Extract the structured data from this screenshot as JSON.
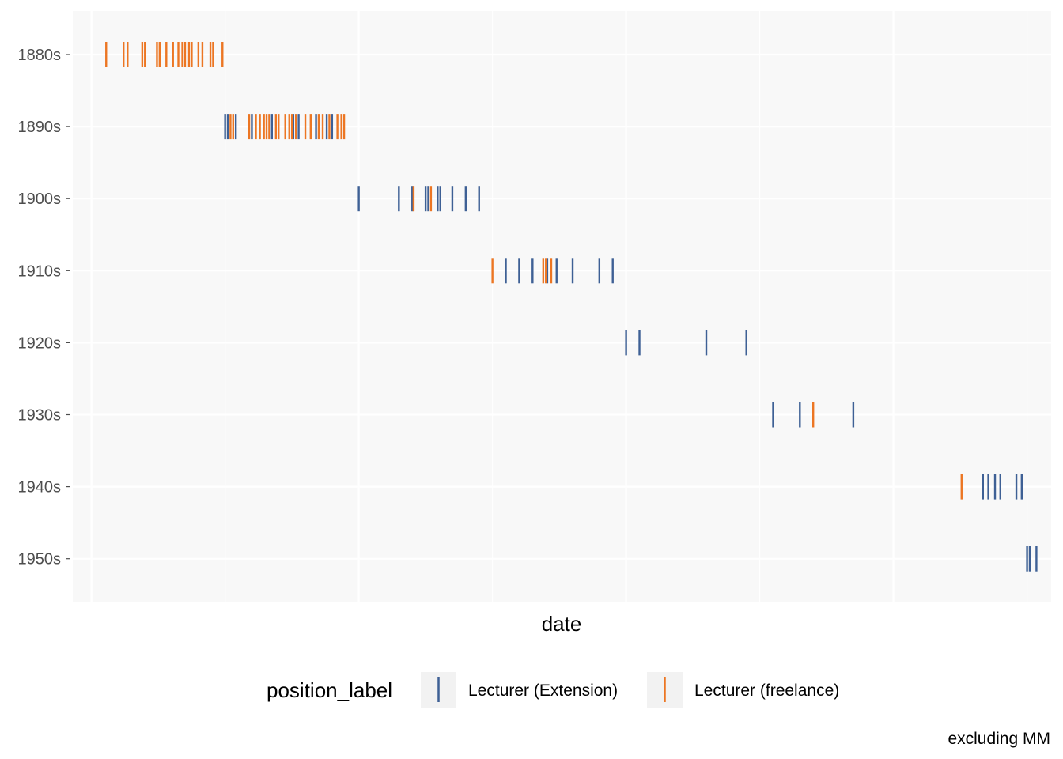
{
  "chart_data": {
    "type": "strip",
    "xlabel": "date",
    "ylabel": "",
    "x_tick_labels_shown": false,
    "xlim": [
      1878.6,
      1951.8
    ],
    "categories": [
      "1880s",
      "1890s",
      "1900s",
      "1910s",
      "1920s",
      "1930s",
      "1940s",
      "1950s"
    ],
    "legend": {
      "title": "position_label",
      "position": "bottom",
      "entries": [
        {
          "label": "Lecturer (Extension)",
          "color": "#3e6095"
        },
        {
          "label": "Lecturer (freelance)",
          "color": "#ec7623"
        }
      ]
    },
    "caption": "excluding MM",
    "colors": {
      "panel": "#f8f8f8",
      "grid": "#ffffff",
      "text": "#4d4d4d"
    },
    "series": [
      {
        "name": "Lecturer (Extension)",
        "points": [
          {
            "decade": "1890s",
            "x": 1890.0
          },
          {
            "decade": "1890s",
            "x": 1890.2
          },
          {
            "decade": "1890s",
            "x": 1890.8
          },
          {
            "decade": "1890s",
            "x": 1892.0
          },
          {
            "decade": "1890s",
            "x": 1893.5
          },
          {
            "decade": "1890s",
            "x": 1895.1
          },
          {
            "decade": "1890s",
            "x": 1895.5
          },
          {
            "decade": "1890s",
            "x": 1896.8
          },
          {
            "decade": "1890s",
            "x": 1897.6
          },
          {
            "decade": "1890s",
            "x": 1898.0
          },
          {
            "decade": "1900s",
            "x": 1900.0
          },
          {
            "decade": "1900s",
            "x": 1903.0
          },
          {
            "decade": "1900s",
            "x": 1904.0
          },
          {
            "decade": "1900s",
            "x": 1905.0
          },
          {
            "decade": "1900s",
            "x": 1905.2
          },
          {
            "decade": "1900s",
            "x": 1905.9
          },
          {
            "decade": "1900s",
            "x": 1906.1
          },
          {
            "decade": "1900s",
            "x": 1907.0
          },
          {
            "decade": "1900s",
            "x": 1908.0
          },
          {
            "decade": "1900s",
            "x": 1909.0
          },
          {
            "decade": "1910s",
            "x": 1911.0
          },
          {
            "decade": "1910s",
            "x": 1912.0
          },
          {
            "decade": "1910s",
            "x": 1913.0
          },
          {
            "decade": "1910s",
            "x": 1914.1
          },
          {
            "decade": "1910s",
            "x": 1914.8
          },
          {
            "decade": "1910s",
            "x": 1916.0
          },
          {
            "decade": "1910s",
            "x": 1918.0
          },
          {
            "decade": "1910s",
            "x": 1919.0
          },
          {
            "decade": "1920s",
            "x": 1920.0
          },
          {
            "decade": "1920s",
            "x": 1921.0
          },
          {
            "decade": "1920s",
            "x": 1926.0
          },
          {
            "decade": "1920s",
            "x": 1929.0
          },
          {
            "decade": "1930s",
            "x": 1931.0
          },
          {
            "decade": "1930s",
            "x": 1933.0
          },
          {
            "decade": "1930s",
            "x": 1937.0
          },
          {
            "decade": "1940s",
            "x": 1946.7
          },
          {
            "decade": "1940s",
            "x": 1947.1
          },
          {
            "decade": "1940s",
            "x": 1947.6
          },
          {
            "decade": "1940s",
            "x": 1948.0
          },
          {
            "decade": "1940s",
            "x": 1949.2
          },
          {
            "decade": "1940s",
            "x": 1949.6
          },
          {
            "decade": "1950s",
            "x": 1950.0
          },
          {
            "decade": "1950s",
            "x": 1950.2
          },
          {
            "decade": "1950s",
            "x": 1950.7
          }
        ]
      },
      {
        "name": "Lecturer (freelance)",
        "points": [
          {
            "decade": "1880s",
            "x": 1881.1
          },
          {
            "decade": "1880s",
            "x": 1882.4
          },
          {
            "decade": "1880s",
            "x": 1882.7
          },
          {
            "decade": "1880s",
            "x": 1883.8
          },
          {
            "decade": "1880s",
            "x": 1884.0
          },
          {
            "decade": "1880s",
            "x": 1884.9
          },
          {
            "decade": "1880s",
            "x": 1885.1
          },
          {
            "decade": "1880s",
            "x": 1885.6
          },
          {
            "decade": "1880s",
            "x": 1886.1
          },
          {
            "decade": "1880s",
            "x": 1886.5
          },
          {
            "decade": "1880s",
            "x": 1886.8
          },
          {
            "decade": "1880s",
            "x": 1887.0
          },
          {
            "decade": "1880s",
            "x": 1887.3
          },
          {
            "decade": "1880s",
            "x": 1887.5
          },
          {
            "decade": "1880s",
            "x": 1888.0
          },
          {
            "decade": "1880s",
            "x": 1888.3
          },
          {
            "decade": "1880s",
            "x": 1888.9
          },
          {
            "decade": "1880s",
            "x": 1889.1
          },
          {
            "decade": "1880s",
            "x": 1889.8
          },
          {
            "decade": "1890s",
            "x": 1890.4
          },
          {
            "decade": "1890s",
            "x": 1890.6
          },
          {
            "decade": "1890s",
            "x": 1891.8
          },
          {
            "decade": "1890s",
            "x": 1892.3
          },
          {
            "decade": "1890s",
            "x": 1892.6
          },
          {
            "decade": "1890s",
            "x": 1892.9
          },
          {
            "decade": "1890s",
            "x": 1893.1
          },
          {
            "decade": "1890s",
            "x": 1893.3
          },
          {
            "decade": "1890s",
            "x": 1893.8
          },
          {
            "decade": "1890s",
            "x": 1894.0
          },
          {
            "decade": "1890s",
            "x": 1894.5
          },
          {
            "decade": "1890s",
            "x": 1894.8
          },
          {
            "decade": "1890s",
            "x": 1895.0
          },
          {
            "decade": "1890s",
            "x": 1895.3
          },
          {
            "decade": "1890s",
            "x": 1896.0
          },
          {
            "decade": "1890s",
            "x": 1896.4
          },
          {
            "decade": "1890s",
            "x": 1897.0
          },
          {
            "decade": "1890s",
            "x": 1897.3
          },
          {
            "decade": "1890s",
            "x": 1897.8
          },
          {
            "decade": "1890s",
            "x": 1898.4
          },
          {
            "decade": "1890s",
            "x": 1898.7
          },
          {
            "decade": "1890s",
            "x": 1898.9
          },
          {
            "decade": "1900s",
            "x": 1904.1
          },
          {
            "decade": "1900s",
            "x": 1905.4
          },
          {
            "decade": "1910s",
            "x": 1910.0
          },
          {
            "decade": "1910s",
            "x": 1913.8
          },
          {
            "decade": "1910s",
            "x": 1914.0
          },
          {
            "decade": "1910s",
            "x": 1914.4
          },
          {
            "decade": "1930s",
            "x": 1934.0
          },
          {
            "decade": "1940s",
            "x": 1945.1
          }
        ]
      }
    ]
  }
}
